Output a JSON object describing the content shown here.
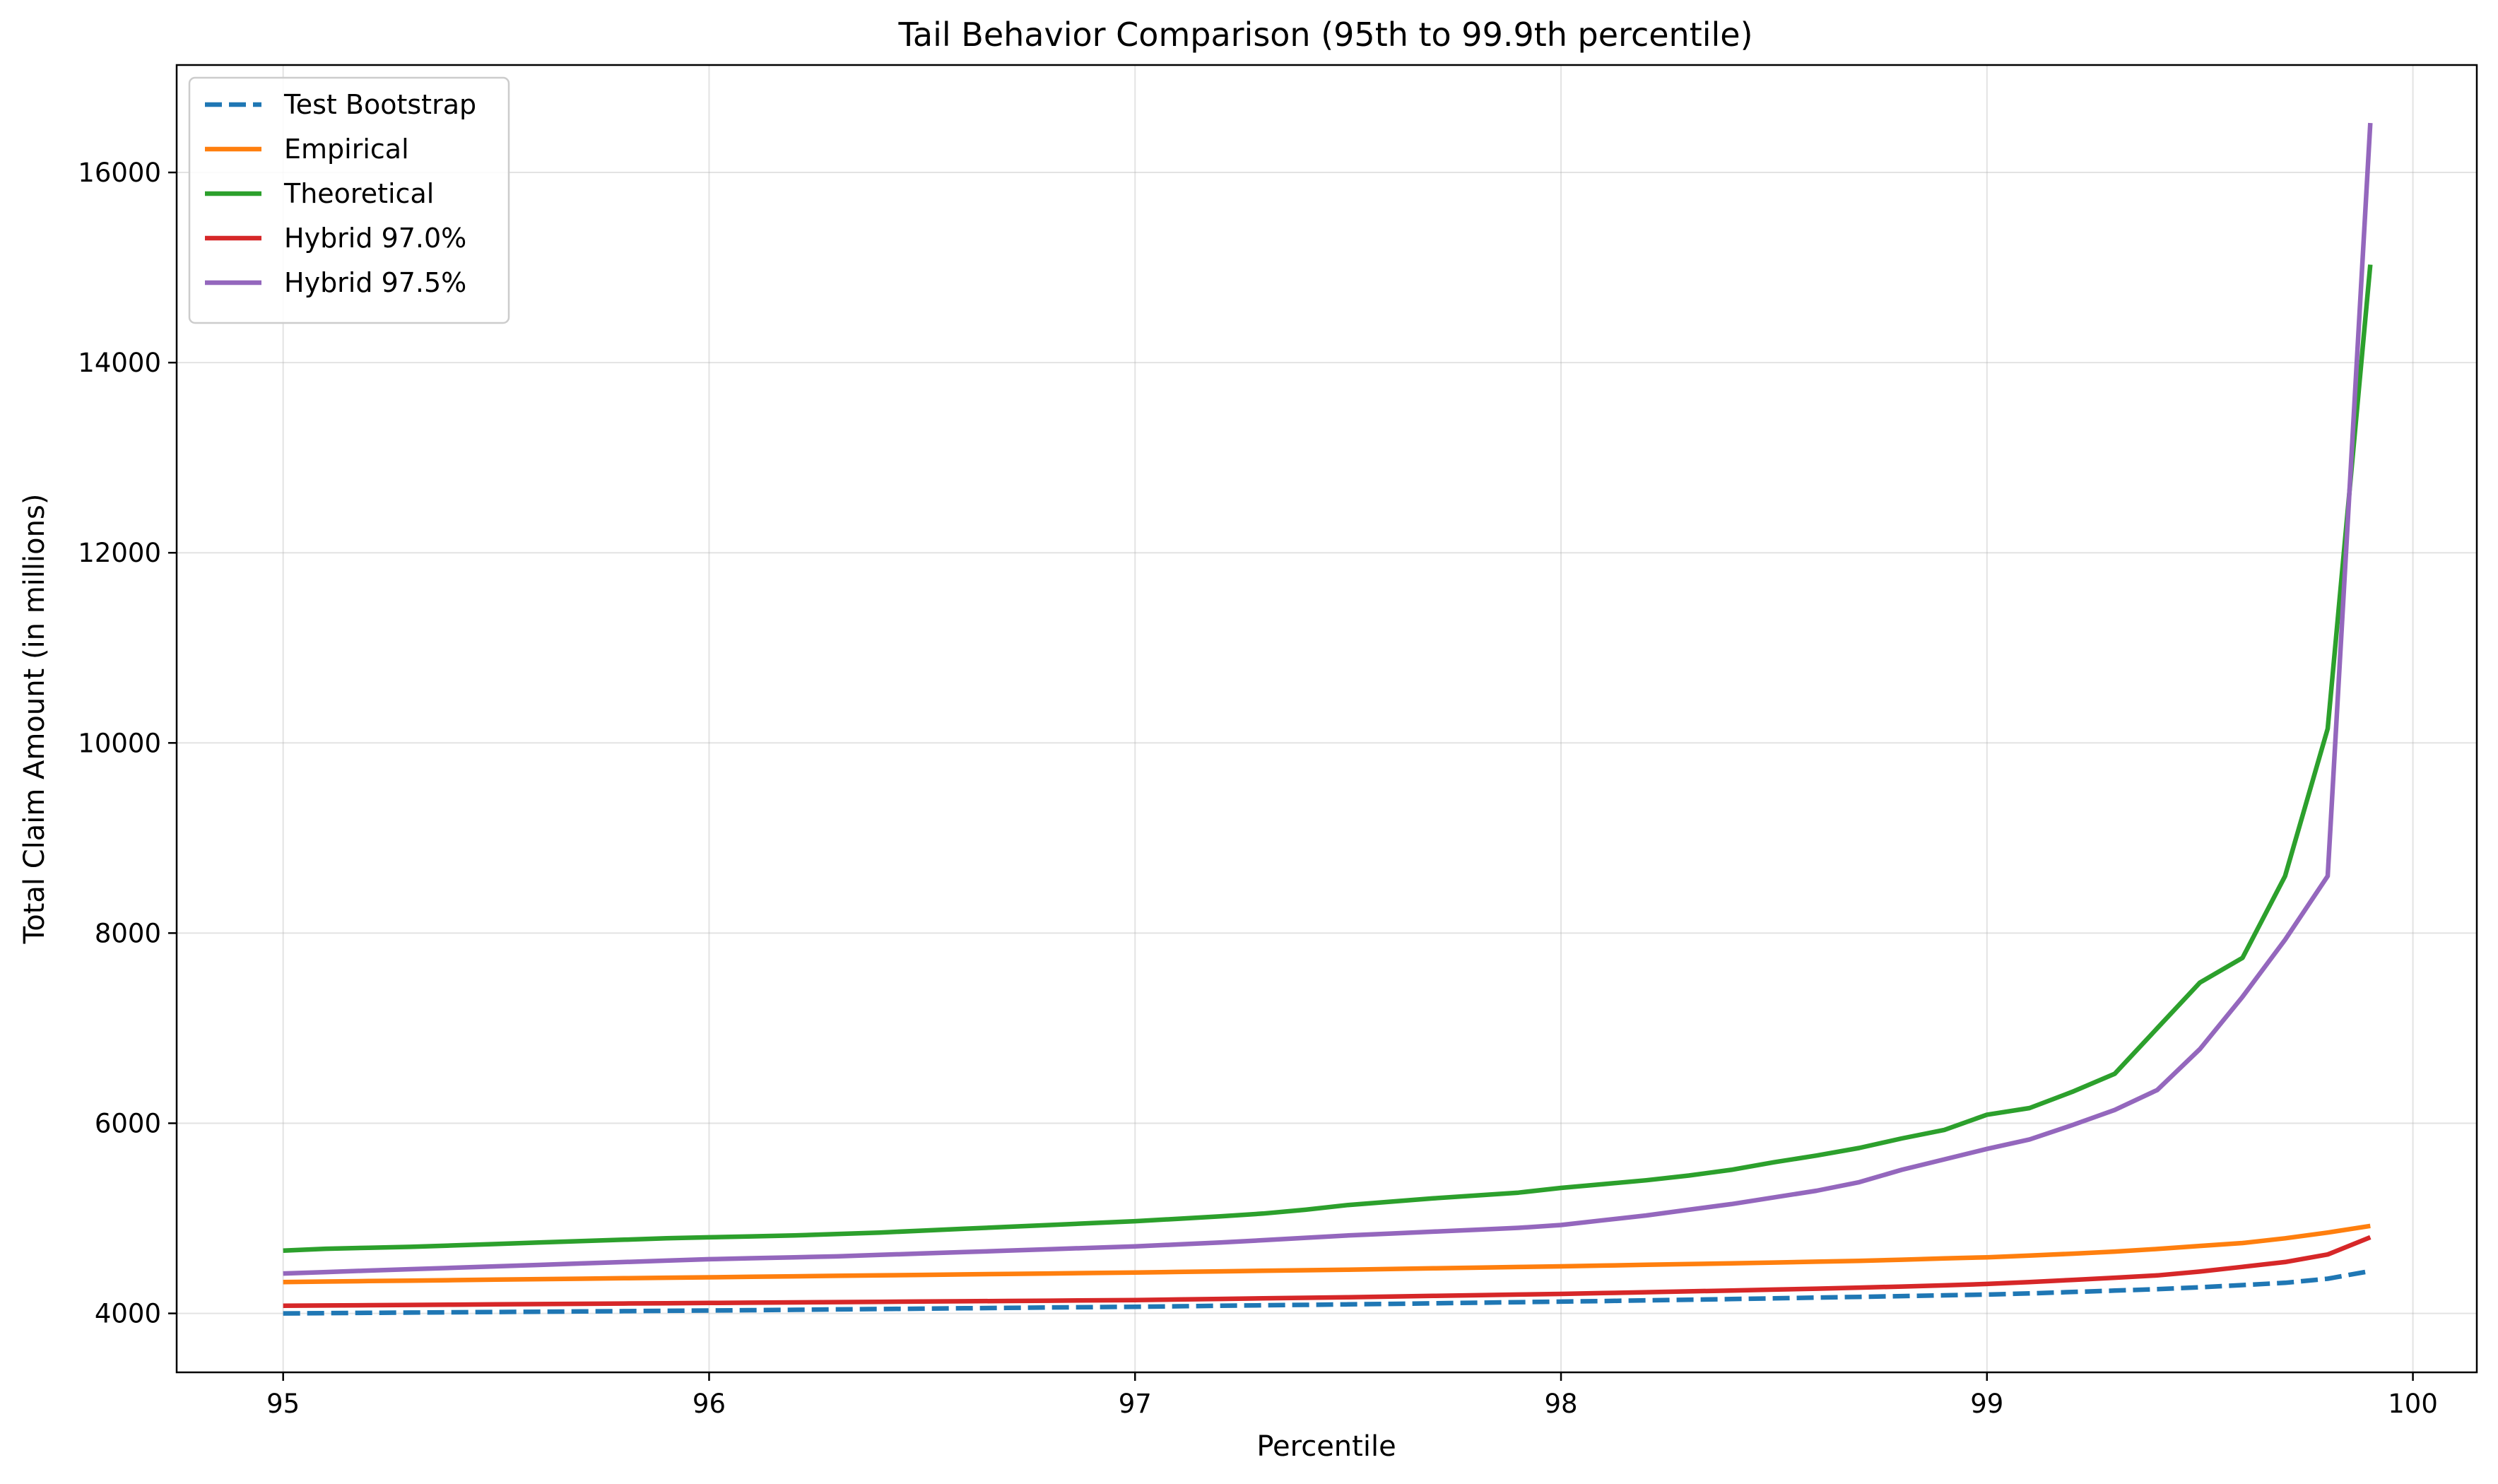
{
  "chart_data": {
    "type": "line",
    "title": "Tail Behavior Comparison (95th to 99.9th percentile)",
    "xlabel": "Percentile",
    "ylabel": "Total Claim Amount (in millions)",
    "xlim": [
      94.75,
      100.15
    ],
    "ylim": [
      3380,
      17130
    ],
    "xticks": [
      95,
      96,
      97,
      98,
      99,
      100
    ],
    "yticks": [
      4000,
      6000,
      8000,
      10000,
      12000,
      14000,
      16000
    ],
    "grid": true,
    "legend_position": "upper-left",
    "x": [
      95.0,
      95.1,
      95.2,
      95.3,
      95.4,
      95.5,
      95.6,
      95.7,
      95.8,
      95.9,
      96.0,
      96.1,
      96.2,
      96.3,
      96.4,
      96.5,
      96.6,
      96.7,
      96.8,
      96.9,
      97.0,
      97.1,
      97.2,
      97.3,
      97.4,
      97.5,
      97.6,
      97.7,
      97.8,
      97.9,
      98.0,
      98.1,
      98.2,
      98.3,
      98.4,
      98.5,
      98.6,
      98.7,
      98.8,
      98.9,
      99.0,
      99.1,
      99.2,
      99.3,
      99.4,
      99.5,
      99.6,
      99.7,
      99.8,
      99.9
    ],
    "series": [
      {
        "name": "Test Bootstrap",
        "color": "#1f77b4",
        "dashed": true,
        "values": [
          4000,
          4003,
          4006,
          4009,
          4012,
          4015,
          4018,
          4021,
          4024,
          4027,
          4030,
          4034,
          4038,
          4042,
          4046,
          4050,
          4054,
          4058,
          4062,
          4066,
          4070,
          4075,
          4080,
          4085,
          4090,
          4095,
          4100,
          4106,
          4112,
          4118,
          4124,
          4130,
          4137,
          4144,
          4151,
          4158,
          4166,
          4174,
          4182,
          4190,
          4198,
          4210,
          4225,
          4240,
          4255,
          4275,
          4298,
          4322,
          4365,
          4445
        ]
      },
      {
        "name": "Empirical",
        "color": "#ff7f0e",
        "dashed": false,
        "values": [
          4330,
          4335,
          4340,
          4345,
          4350,
          4355,
          4360,
          4365,
          4370,
          4375,
          4380,
          4385,
          4390,
          4395,
          4400,
          4405,
          4410,
          4415,
          4420,
          4425,
          4430,
          4436,
          4442,
          4448,
          4454,
          4460,
          4467,
          4474,
          4481,
          4488,
          4495,
          4503,
          4511,
          4519,
          4527,
          4535,
          4544,
          4553,
          4565,
          4578,
          4590,
          4608,
          4628,
          4650,
          4678,
          4710,
          4740,
          4790,
          4850,
          4920
        ]
      },
      {
        "name": "Theoretical",
        "color": "#2ca02c",
        "dashed": false,
        "values": [
          4660,
          4680,
          4690,
          4700,
          4715,
          4730,
          4745,
          4760,
          4775,
          4790,
          4800,
          4810,
          4820,
          4835,
          4850,
          4870,
          4890,
          4910,
          4930,
          4950,
          4970,
          4995,
          5020,
          5050,
          5090,
          5140,
          5175,
          5210,
          5240,
          5270,
          5320,
          5360,
          5400,
          5450,
          5510,
          5590,
          5660,
          5740,
          5840,
          5930,
          6090,
          6160,
          6330,
          6520,
          7000,
          7480,
          7740,
          8600,
          10150,
          15030
        ]
      },
      {
        "name": "Hybrid 97.0%",
        "color": "#d62728",
        "dashed": false,
        "values": [
          4080,
          4083,
          4086,
          4089,
          4092,
          4095,
          4098,
          4101,
          4104,
          4107,
          4110,
          4113,
          4116,
          4119,
          4122,
          4125,
          4128,
          4131,
          4134,
          4137,
          4140,
          4146,
          4152,
          4158,
          4164,
          4170,
          4177,
          4184,
          4191,
          4198,
          4205,
          4214,
          4223,
          4232,
          4241,
          4250,
          4260,
          4271,
          4282,
          4295,
          4310,
          4330,
          4352,
          4375,
          4400,
          4440,
          4490,
          4540,
          4620,
          4800
        ]
      },
      {
        "name": "Hybrid 97.5%",
        "color": "#9467bd",
        "dashed": false,
        "values": [
          4420,
          4435,
          4450,
          4465,
          4480,
          4495,
          4510,
          4525,
          4540,
          4555,
          4570,
          4580,
          4590,
          4600,
          4615,
          4630,
          4645,
          4660,
          4675,
          4690,
          4705,
          4725,
          4745,
          4770,
          4795,
          4820,
          4840,
          4860,
          4880,
          4900,
          4930,
          4980,
          5030,
          5090,
          5150,
          5220,
          5290,
          5380,
          5510,
          5620,
          5730,
          5830,
          5980,
          6140,
          6350,
          6780,
          7330,
          7930,
          8600,
          16520
        ]
      }
    ]
  }
}
